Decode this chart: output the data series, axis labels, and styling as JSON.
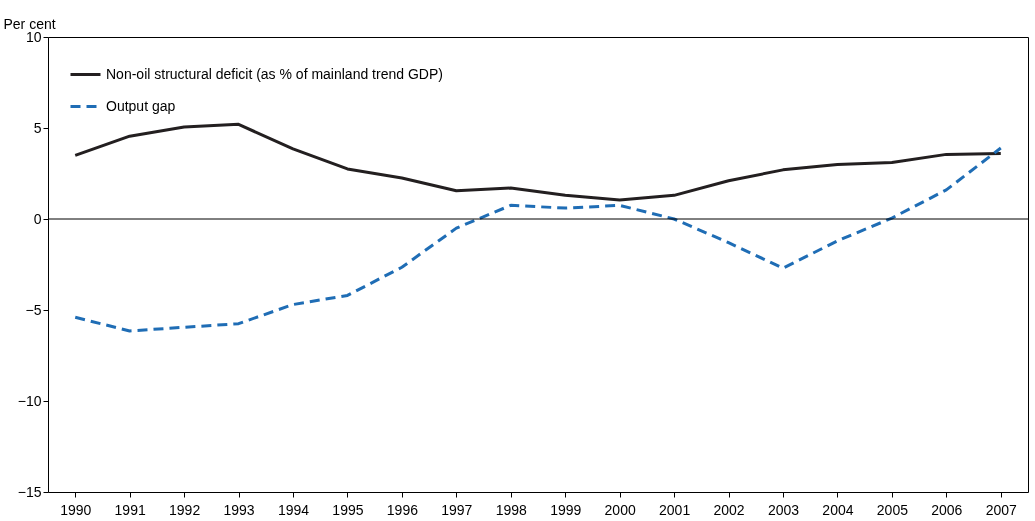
{
  "chart_data": {
    "type": "line",
    "ylabel": "Per cent",
    "categories": [
      "1990",
      "1991",
      "1992",
      "1993",
      "1994",
      "1995",
      "1996",
      "1997",
      "1998",
      "1999",
      "2000",
      "2001",
      "2002",
      "2003",
      "2004",
      "2005",
      "2006",
      "2007"
    ],
    "series": [
      {
        "name": "Non-oil structural deficit (as % of mainland trend GDP)",
        "color": "#231f20",
        "line_style": "solid",
        "values": [
          3.5,
          4.55,
          5.05,
          5.2,
          3.85,
          2.75,
          2.25,
          1.55,
          1.7,
          1.3,
          1.05,
          1.3,
          2.1,
          2.7,
          3.0,
          3.1,
          3.55,
          3.6
        ]
      },
      {
        "name": "Output gap",
        "color": "#1f6db5",
        "line_style": "dashed",
        "values": [
          -5.4,
          -6.15,
          -5.95,
          -5.75,
          -4.7,
          -4.2,
          -2.65,
          -0.5,
          0.75,
          0.6,
          0.75,
          0,
          -1.3,
          -2.7,
          -1.2,
          0.05,
          1.6,
          3.9
        ]
      }
    ],
    "ylim": [
      -15,
      10
    ],
    "yticks": [
      -15,
      -10,
      -5,
      0,
      5,
      10
    ],
    "ref_lines": [
      {
        "axis": "y",
        "value": 0,
        "color": "#000000"
      }
    ],
    "legend": "top left",
    "grid": false
  }
}
